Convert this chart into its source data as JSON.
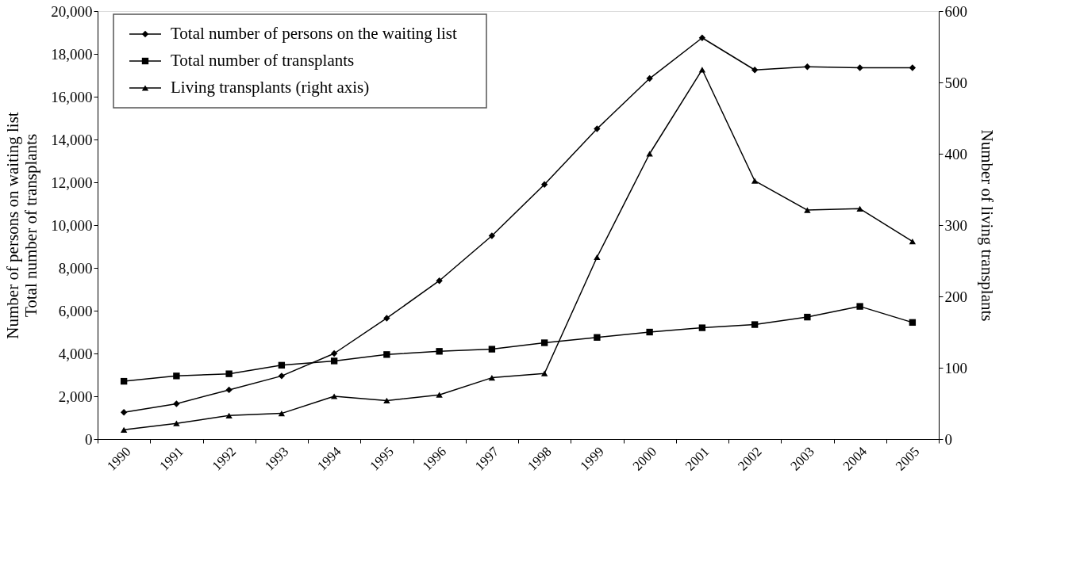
{
  "chart_data": {
    "type": "line",
    "ylabel": "Number of persons on waiting list\nTotal number of transplants",
    "y2label": "Number of living transplants",
    "categories": [
      "1990",
      "1991",
      "1992",
      "1993",
      "1994",
      "1995",
      "1996",
      "1997",
      "1998",
      "1999",
      "2000",
      "2001",
      "2002",
      "2003",
      "2004",
      "2005"
    ],
    "series": [
      {
        "name": "Total number of persons on the waiting list",
        "color": "#000000",
        "marker": "diamond",
        "values": [
          1250,
          1650,
          2300,
          2950,
          4000,
          5650,
          7400,
          9500,
          11900,
          14500,
          16850,
          18750,
          17250,
          17400,
          17350,
          17350
        ]
      },
      {
        "name": "Total number of transplants",
        "color": "#000000",
        "marker": "square",
        "values": [
          2700,
          2950,
          3050,
          3450,
          3650,
          3950,
          4100,
          4200,
          4500,
          4750,
          5000,
          5200,
          5350,
          5700,
          6200,
          5450
        ]
      },
      {
        "name": "Living transplants (right axis)",
        "color": "#000000",
        "marker": "triangle",
        "axis": "y2",
        "values": [
          13,
          22,
          33,
          36,
          60,
          54,
          62,
          86,
          92,
          255,
          400,
          518,
          362,
          321,
          323,
          277
        ]
      }
    ],
    "ylim": [
      0,
      20000
    ],
    "yticks": [
      0,
      {
        "value": 2000,
        "label": "2,000"
      },
      {
        "value": 4000,
        "label": "4,000"
      },
      {
        "value": 6000,
        "label": "6,000"
      },
      {
        "value": 8000,
        "label": "8,000"
      },
      {
        "value": 10000,
        "label": "10,000"
      },
      {
        "value": 12000,
        "label": "12,000"
      },
      {
        "value": 14000,
        "label": "14,000"
      },
      {
        "value": 16000,
        "label": "16,000"
      },
      {
        "value": 18000,
        "label": "18,000"
      },
      {
        "value": 20000,
        "label": "20,000"
      }
    ],
    "y2lim": [
      0,
      600
    ],
    "y2ticks": [
      0,
      100,
      200,
      300,
      400,
      500,
      600
    ],
    "grid": false,
    "legend": "top left",
    "line_style": "solid"
  }
}
